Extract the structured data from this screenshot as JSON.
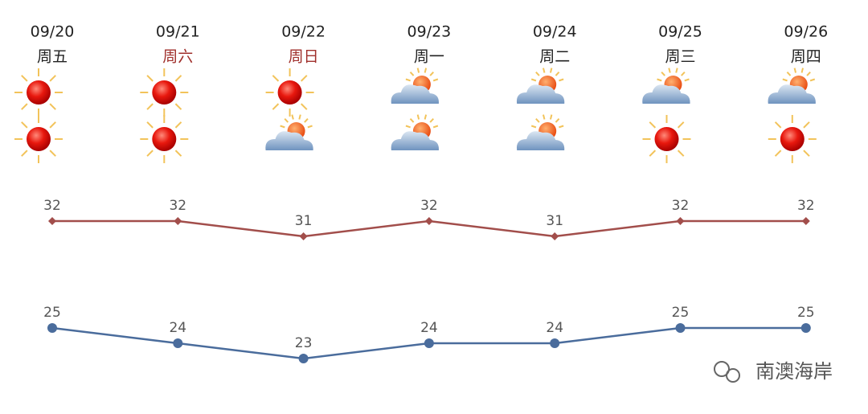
{
  "chart_data": {
    "type": "line",
    "categories": [
      "09/20",
      "09/21",
      "09/22",
      "09/23",
      "09/24",
      "09/25",
      "09/26"
    ],
    "weekdays": [
      "周五",
      "周六",
      "周日",
      "周一",
      "周二",
      "周三",
      "周四"
    ],
    "series": [
      {
        "color": "#a24e4b",
        "marker": "diamond",
        "values": [
          32,
          32,
          31,
          32,
          31,
          32,
          32
        ]
      },
      {
        "color": "#4a6c9c",
        "marker": "circle",
        "values": [
          25,
          24,
          23,
          24,
          24,
          25,
          25
        ]
      }
    ],
    "ylim": [
      22,
      34
    ],
    "annotation": "南澳海岸"
  }
}
